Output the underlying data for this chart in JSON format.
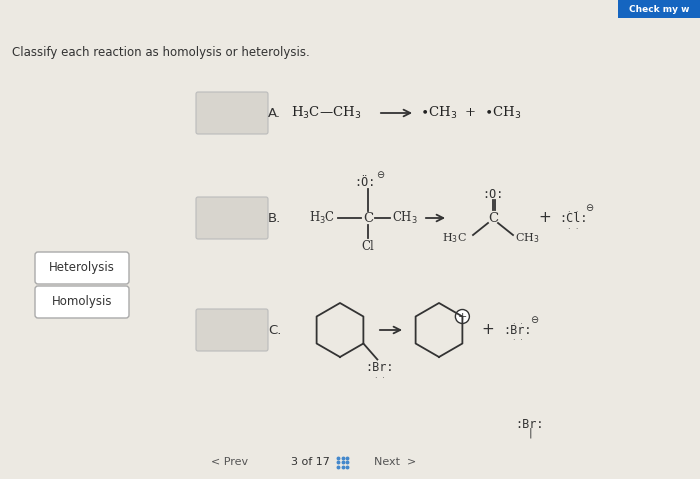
{
  "title": "Classify each reaction as homolysis or heterolysis.",
  "bg_color": "#e8e6e1",
  "button_heterolysis": "Heterolysis",
  "button_homolysis": "Homolysis",
  "reaction_A_label": "A.",
  "reaction_B_label": "B.",
  "reaction_C_label": "C.",
  "page_info": "3 of 17",
  "check_button_color": "#1565c0",
  "check_button_text": "Check my w",
  "nav_prev": "< Prev",
  "nav_next": "Next  >",
  "bg_light": "#ece9e2"
}
